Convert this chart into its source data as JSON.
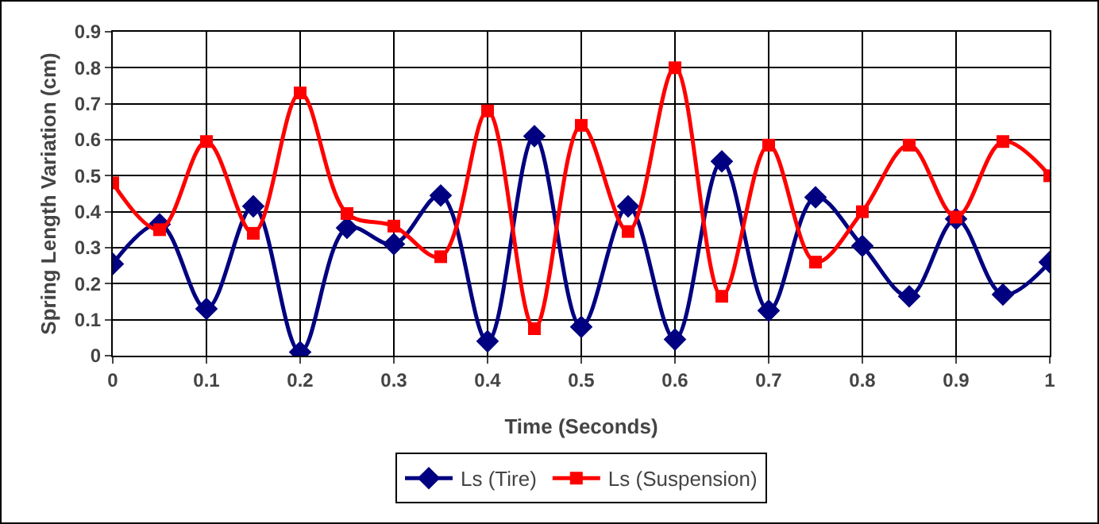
{
  "chart_data": {
    "type": "line",
    "xlabel": "Time (Seconds)",
    "ylabel": "Spring Length Variation (cm)",
    "x": [
      0,
      0.05,
      0.1,
      0.15,
      0.2,
      0.25,
      0.3,
      0.35,
      0.4,
      0.45,
      0.5,
      0.55,
      0.6,
      0.65,
      0.7,
      0.75,
      0.8,
      0.85,
      0.9,
      0.95,
      1
    ],
    "series": [
      {
        "name": "Ls (Tire)",
        "color": "#000080",
        "marker": "diamond",
        "values": [
          0.255,
          0.365,
          0.13,
          0.415,
          0.01,
          0.355,
          0.31,
          0.445,
          0.04,
          0.61,
          0.08,
          0.415,
          0.045,
          0.54,
          0.125,
          0.44,
          0.305,
          0.165,
          0.38,
          0.17,
          0.26
        ]
      },
      {
        "name": "Ls (Suspension)",
        "color": "#ff0000",
        "marker": "square",
        "values": [
          0.48,
          0.35,
          0.595,
          0.34,
          0.73,
          0.395,
          0.36,
          0.275,
          0.68,
          0.075,
          0.64,
          0.345,
          0.8,
          0.165,
          0.585,
          0.26,
          0.4,
          0.585,
          0.385,
          0.595,
          0.5
        ]
      }
    ],
    "xlim": [
      0,
      1
    ],
    "xticks": [
      0,
      0.1,
      0.2,
      0.3,
      0.4,
      0.5,
      0.6,
      0.7,
      0.8,
      0.9,
      1
    ],
    "ylim": [
      0,
      0.9
    ],
    "yticks": [
      0,
      0.1,
      0.2,
      0.3,
      0.4,
      0.5,
      0.6,
      0.7,
      0.8,
      0.9
    ],
    "grid": true,
    "legend": "bottom",
    "line_style": "solid"
  }
}
